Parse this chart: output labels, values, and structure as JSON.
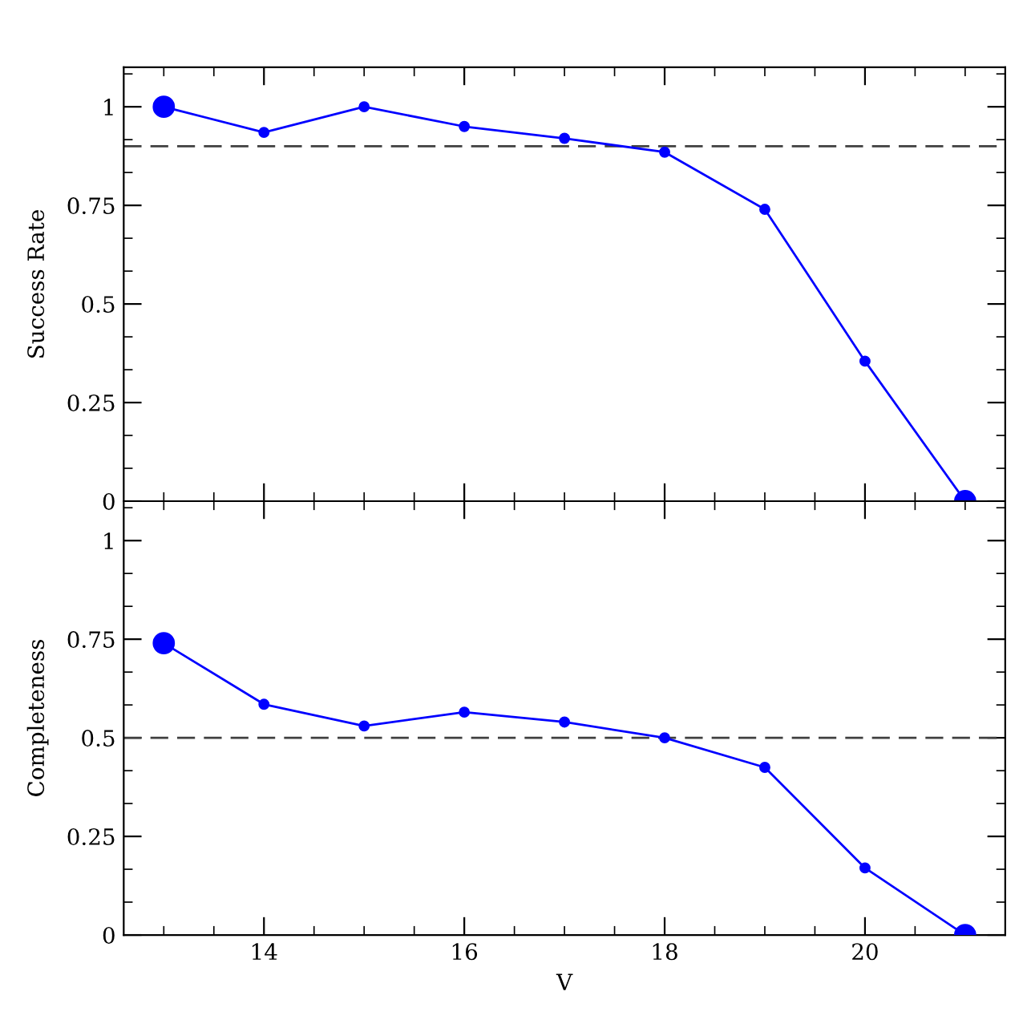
{
  "chart_data": [
    {
      "type": "line",
      "ylabel": "Success Rate",
      "x": [
        13,
        14,
        15,
        16,
        17,
        18,
        19,
        20,
        21
      ],
      "series": [
        {
          "color": "#0000ff",
          "values": [
            1,
            0.935,
            1,
            0.95,
            0.92,
            0.885,
            0.74,
            0.355,
            0
          ]
        }
      ],
      "xlim": [
        12.6,
        21.4
      ],
      "xticks": [
        14,
        16,
        18,
        20
      ],
      "ylim": [
        0,
        1.1
      ],
      "yticks": [
        0,
        0.25,
        0.5,
        0.75,
        1
      ],
      "ref_lines": [
        {
          "axis": "y",
          "value": 0.9,
          "color": "#404040",
          "line_style": "dashed"
        }
      ],
      "tick_labels": "y",
      "marker": "circle",
      "line_style": "solid",
      "grid": false,
      "legend": false
    },
    {
      "type": "line",
      "ylabel": "Completeness",
      "xlabel": "V",
      "x": [
        13,
        14,
        15,
        16,
        17,
        18,
        19,
        20,
        21
      ],
      "series": [
        {
          "color": "#0000ff",
          "values": [
            0.74,
            0.585,
            0.53,
            0.565,
            0.54,
            0.5,
            0.425,
            0.17,
            0
          ]
        }
      ],
      "xlim": [
        12.6,
        21.4
      ],
      "xticks": [
        14,
        16,
        18,
        20
      ],
      "ylim": [
        0,
        1.1
      ],
      "yticks": [
        0,
        0.25,
        0.5,
        0.75,
        1
      ],
      "ref_lines": [
        {
          "axis": "y",
          "value": 0.5,
          "color": "#404040",
          "line_style": "dashed"
        }
      ],
      "marker": "circle",
      "line_style": "solid",
      "grid": false,
      "legend": false
    }
  ]
}
